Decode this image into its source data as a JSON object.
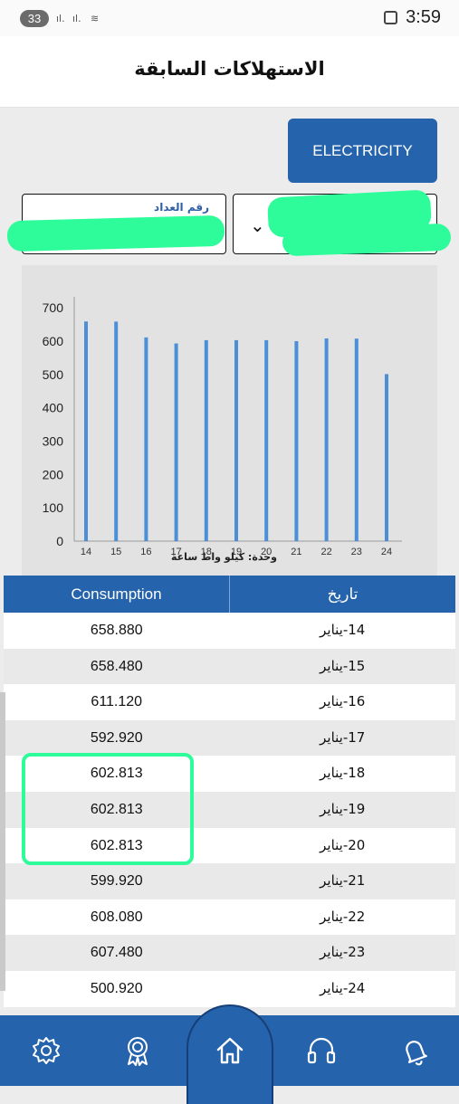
{
  "status_bar": {
    "battery": "33",
    "time": "3:59"
  },
  "header": {
    "title": "الاستهلاكات السابقة"
  },
  "service_button": {
    "label": "ELECTRICITY"
  },
  "meter_field": {
    "label": "رقم العداد"
  },
  "account_field": {
    "chevron": "⌄"
  },
  "chart_data": {
    "type": "bar",
    "categories": [
      "14",
      "15",
      "16",
      "17",
      "18",
      "19",
      "20",
      "21",
      "22",
      "23",
      "24"
    ],
    "values": [
      658.88,
      658.48,
      611.12,
      592.92,
      602.813,
      602.813,
      602.813,
      599.92,
      608.08,
      607.48,
      500.92
    ],
    "yticks": [
      0,
      100,
      200,
      300,
      400,
      500,
      600,
      700
    ],
    "ylim": [
      0,
      760
    ],
    "unit_label": "وحدة: كيلو واط ساعة",
    "bar_color": "#4a8fd8"
  },
  "table": {
    "headers": {
      "consumption": "Consumption",
      "date": "تاريخ"
    },
    "rows": [
      {
        "consumption": "658.880",
        "date": "14-يناير"
      },
      {
        "consumption": "658.480",
        "date": "15-يناير"
      },
      {
        "consumption": "611.120",
        "date": "16-يناير"
      },
      {
        "consumption": "592.920",
        "date": "17-يناير"
      },
      {
        "consumption": "602.813",
        "date": "18-يناير"
      },
      {
        "consumption": "602.813",
        "date": "19-يناير"
      },
      {
        "consumption": "602.813",
        "date": "20-يناير"
      },
      {
        "consumption": "599.920",
        "date": "21-يناير"
      },
      {
        "consumption": "608.080",
        "date": "22-يناير"
      },
      {
        "consumption": "607.480",
        "date": "23-يناير"
      },
      {
        "consumption": "500.920",
        "date": "24-يناير"
      }
    ]
  },
  "nav": {
    "items": [
      "settings-icon",
      "award-icon",
      "home-icon",
      "headset-icon",
      "bell-icon"
    ]
  },
  "colors": {
    "primary": "#2563ac",
    "highlight": "#2efc9a"
  }
}
